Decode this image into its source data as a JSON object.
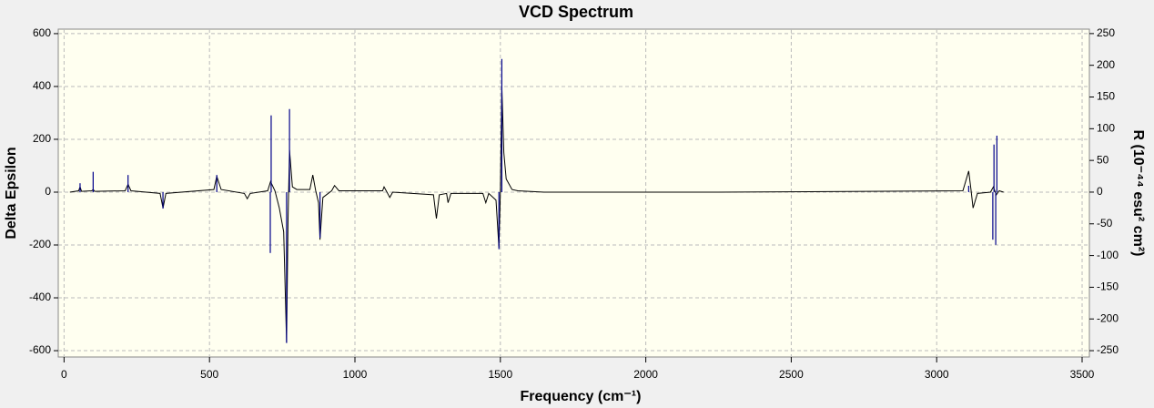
{
  "chart_data": {
    "type": "line",
    "title": "VCD Spectrum",
    "x_label": "Frequency (cm⁻¹)",
    "y_label": "Delta Epsilon",
    "y2_label": "R (10⁻⁴⁴ esu² cm²)",
    "xlim": [
      -20,
      3525
    ],
    "xticks": [
      0,
      500,
      1000,
      1500,
      2000,
      2500,
      3000,
      3500
    ],
    "ylim": [
      -624,
      617
    ],
    "yticks": [
      -600,
      -400,
      -200,
      0,
      200,
      400,
      600
    ],
    "y2lim": [
      -260,
      257
    ],
    "y2ticks": [
      -250,
      -200,
      -150,
      -100,
      -50,
      0,
      50,
      100,
      150,
      200,
      250
    ],
    "grid": true,
    "series": [
      {
        "style": "line",
        "color": "#000000",
        "x": [
          20,
          50,
          55,
          60,
          95,
          100,
          105,
          210,
          220,
          230,
          330,
          340,
          350,
          515,
          525,
          540,
          620,
          630,
          640,
          700,
          710,
          725,
          740,
          755,
          765,
          770,
          775,
          785,
          800,
          845,
          855,
          865,
          875,
          880,
          890,
          920,
          930,
          945,
          1095,
          1100,
          1110,
          1120,
          1130,
          1270,
          1280,
          1290,
          1315,
          1320,
          1330,
          1440,
          1450,
          1460,
          1485,
          1495,
          1500,
          1505,
          1512,
          1520,
          1540,
          1560,
          1650,
          2250,
          3090,
          3110,
          3118,
          3125,
          3140,
          3185,
          3195,
          3205,
          3215,
          3230
        ],
        "values": [
          0,
          5,
          20,
          3,
          5,
          10,
          3,
          5,
          30,
          5,
          -5,
          -60,
          -5,
          10,
          60,
          10,
          -5,
          -25,
          -5,
          5,
          40,
          5,
          -60,
          -150,
          -570,
          -100,
          160,
          20,
          10,
          10,
          65,
          5,
          -40,
          -180,
          -20,
          5,
          25,
          5,
          5,
          20,
          0,
          -20,
          0,
          -10,
          -100,
          -10,
          -5,
          -40,
          -5,
          -5,
          -40,
          -5,
          -30,
          -210,
          0,
          400,
          150,
          50,
          10,
          5,
          0,
          0,
          5,
          80,
          10,
          -60,
          -5,
          0,
          20,
          -10,
          5,
          0
        ]
      },
      {
        "style": "stick",
        "color": "#00008b",
        "axis": "y2",
        "x": [
          55,
          100,
          220,
          340,
          525,
          709,
          712,
          765,
          775,
          880,
          1495,
          1505,
          3110,
          3193,
          3197,
          3203,
          3207
        ],
        "values": [
          14,
          32,
          27,
          -26,
          27,
          -96,
          121,
          -238,
          131,
          -72,
          -90,
          210,
          10,
          -75,
          75,
          -83,
          89
        ]
      }
    ]
  }
}
